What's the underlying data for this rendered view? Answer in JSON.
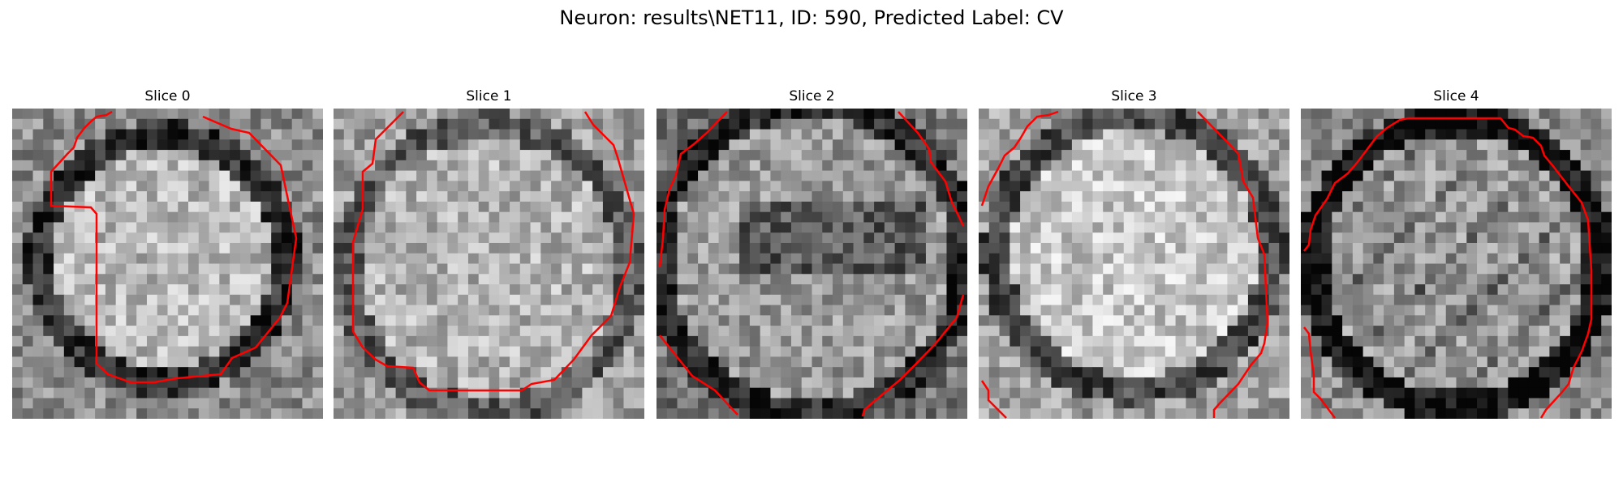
{
  "figure": {
    "title": "Neuron: results\\NET11, ID: 590, Predicted Label: CV"
  },
  "panels": [
    {
      "title": "Slice 0"
    },
    {
      "title": "Slice 1"
    },
    {
      "title": "Slice 2"
    },
    {
      "title": "Slice 3"
    },
    {
      "title": "Slice 4"
    }
  ],
  "style": {
    "contour_color": "#ff0000",
    "colormap": "gray"
  }
}
